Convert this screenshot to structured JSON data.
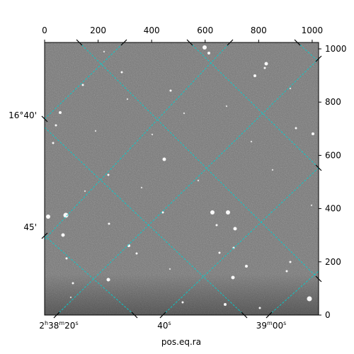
{
  "chart_data": {
    "type": "heatmap",
    "title": "",
    "xlabel": "pos.eq.ra",
    "ylabel": "",
    "pixel_axes": {
      "xlim": [
        0,
        1024
      ],
      "ylim": [
        0,
        1024
      ],
      "x_ticks": [
        0,
        200,
        400,
        600,
        800,
        1000
      ],
      "y_ticks": [
        0,
        200,
        400,
        600,
        800,
        1000
      ],
      "x_tick_labels": [
        "0",
        "200",
        "400",
        "600",
        "800",
        "1000"
      ],
      "y_tick_labels": [
        "0",
        "200",
        "400",
        "600",
        "800",
        "1000"
      ]
    },
    "world_axes": {
      "ra_tick_labels": [
        {
          "main": "2",
          "sup1": "h",
          "mid": "38",
          "sup2": "m",
          "tail": "20",
          "sup3": "s"
        },
        {
          "main": "",
          "sup1": "",
          "mid": "",
          "sup2": "",
          "tail": "40",
          "sup3": "s"
        },
        {
          "main": "",
          "sup1": "",
          "mid": "",
          "sup2": "",
          "tail": "39",
          "sup3": "m",
          "tail2": "00",
          "sup4": "s"
        }
      ],
      "dec_tick_labels": [
        "16°40'",
        "45'"
      ]
    },
    "colormap": "gray",
    "grid": true,
    "grid_color": "#00d0d0",
    "image_background": "#7a7a7a"
  }
}
